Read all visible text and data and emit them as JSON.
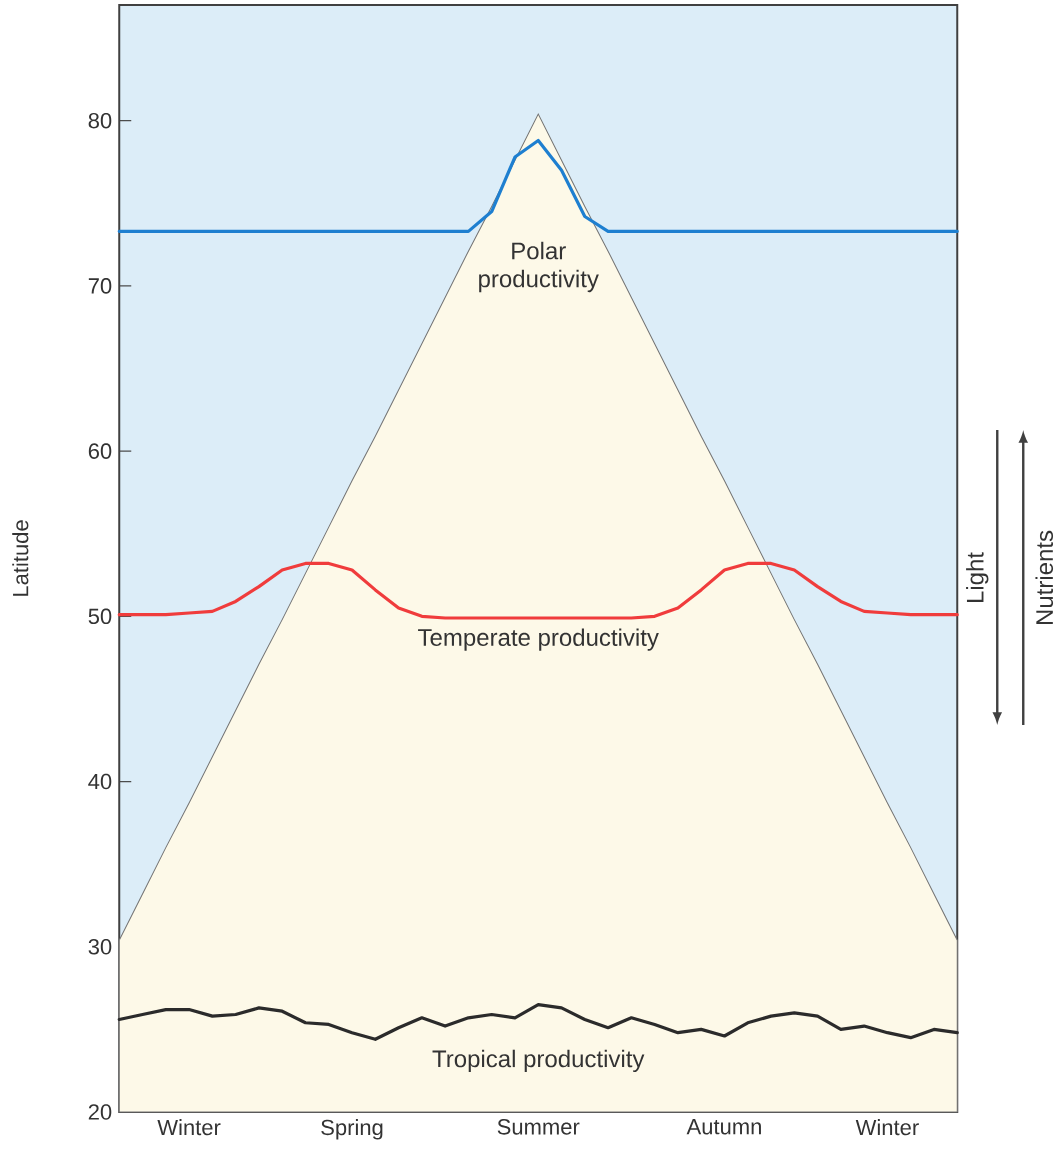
{
  "chart_data": {
    "type": "line",
    "ylabel": "Latitude",
    "ylim": [
      20,
      87
    ],
    "yticks": [
      20,
      30,
      40,
      50,
      60,
      70,
      80
    ],
    "categories": [
      null,
      null,
      null,
      "Winter",
      null,
      null,
      null,
      null,
      null,
      null,
      "Spring",
      null,
      null,
      null,
      null,
      null,
      null,
      null,
      "Summer",
      null,
      null,
      null,
      null,
      null,
      null,
      null,
      "Autumn",
      null,
      null,
      null,
      null,
      null,
      null,
      "Winter",
      null,
      null,
      null
    ],
    "series": [
      {
        "type": "area",
        "color": "#fdf9e8",
        "values": [
          30.4,
          33.2,
          36.0,
          38.7,
          41.5,
          44.3,
          47.1,
          49.8,
          52.6,
          55.4,
          58.2,
          60.9,
          63.7,
          66.5,
          69.3,
          72.1,
          74.8,
          77.6,
          80.4,
          77.6,
          74.8,
          72.1,
          69.3,
          66.5,
          63.7,
          60.9,
          58.2,
          55.4,
          52.6,
          49.8,
          47.1,
          44.3,
          41.5,
          38.7,
          36.0,
          33.2,
          30.4
        ]
      },
      {
        "name": "Polar productivity",
        "color": "#1e7fd0",
        "values": [
          73.3,
          73.3,
          73.3,
          73.3,
          73.3,
          73.3,
          73.3,
          73.3,
          73.3,
          73.3,
          73.3,
          73.3,
          73.3,
          73.3,
          73.3,
          73.3,
          74.5,
          77.8,
          78.8,
          77.0,
          74.2,
          73.3,
          73.3,
          73.3,
          73.3,
          73.3,
          73.3,
          73.3,
          73.3,
          73.3,
          73.3,
          73.3,
          73.3,
          73.3,
          73.3,
          73.3,
          73.3
        ]
      },
      {
        "name": "Temperate productivity",
        "color": "#f03c3c",
        "values": [
          50.1,
          50.1,
          50.1,
          50.2,
          50.3,
          50.9,
          51.8,
          52.8,
          53.2,
          53.2,
          52.8,
          51.6,
          50.5,
          50.0,
          49.9,
          49.9,
          49.9,
          49.9,
          49.9,
          49.9,
          49.9,
          49.9,
          49.9,
          50.0,
          50.5,
          51.6,
          52.8,
          53.2,
          53.2,
          52.8,
          51.8,
          50.9,
          50.3,
          50.2,
          50.1,
          50.1,
          50.1
        ]
      },
      {
        "name": "Tropical productivity",
        "color": "#2b2b2b",
        "values": [
          25.6,
          25.9,
          26.2,
          26.2,
          25.8,
          25.9,
          26.3,
          26.1,
          25.4,
          25.3,
          24.8,
          24.4,
          25.1,
          25.7,
          25.2,
          25.7,
          25.9,
          25.7,
          26.5,
          26.3,
          25.6,
          25.1,
          25.7,
          25.3,
          24.8,
          25.0,
          24.6,
          25.4,
          25.8,
          26.0,
          25.8,
          25.0,
          25.2,
          24.8,
          24.5,
          25.0,
          24.8
        ]
      }
    ],
    "annotations": [
      "Light",
      "Nutrients"
    ]
  }
}
